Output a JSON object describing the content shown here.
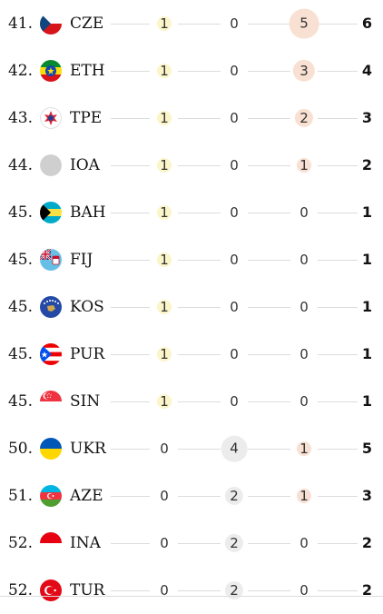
{
  "colors": {
    "gold_bubble": "#fbf5c9",
    "silver_bubble": "#ececec",
    "bronze_bubble": "#f8e0d2",
    "line": "#dcdcdc"
  },
  "rows": [
    {
      "rank": "41.",
      "code": "CZE",
      "flag": "cze",
      "gold": "1",
      "silver": "0",
      "bronze": "5",
      "total": "6"
    },
    {
      "rank": "42.",
      "code": "ETH",
      "flag": "eth",
      "gold": "1",
      "silver": "0",
      "bronze": "3",
      "total": "4"
    },
    {
      "rank": "43.",
      "code": "TPE",
      "flag": "tpe",
      "gold": "1",
      "silver": "0",
      "bronze": "2",
      "total": "3"
    },
    {
      "rank": "44.",
      "code": "IOA",
      "flag": "ioa",
      "gold": "1",
      "silver": "0",
      "bronze": "1",
      "total": "2"
    },
    {
      "rank": "45.",
      "code": "BAH",
      "flag": "bah",
      "gold": "1",
      "silver": "0",
      "bronze": "0",
      "total": "1"
    },
    {
      "rank": "45.",
      "code": "FIJ",
      "flag": "fij",
      "gold": "1",
      "silver": "0",
      "bronze": "0",
      "total": "1"
    },
    {
      "rank": "45.",
      "code": "KOS",
      "flag": "kos",
      "gold": "1",
      "silver": "0",
      "bronze": "0",
      "total": "1"
    },
    {
      "rank": "45.",
      "code": "PUR",
      "flag": "pur",
      "gold": "1",
      "silver": "0",
      "bronze": "0",
      "total": "1"
    },
    {
      "rank": "45.",
      "code": "SIN",
      "flag": "sin",
      "gold": "1",
      "silver": "0",
      "bronze": "0",
      "total": "1"
    },
    {
      "rank": "50.",
      "code": "UKR",
      "flag": "ukr",
      "gold": "0",
      "silver": "4",
      "bronze": "1",
      "total": "5"
    },
    {
      "rank": "51.",
      "code": "AZE",
      "flag": "aze",
      "gold": "0",
      "silver": "2",
      "bronze": "1",
      "total": "3"
    },
    {
      "rank": "52.",
      "code": "INA",
      "flag": "ina",
      "gold": "0",
      "silver": "2",
      "bronze": "0",
      "total": "2"
    },
    {
      "rank": "52.",
      "code": "TUR",
      "flag": "tur",
      "gold": "0",
      "silver": "2",
      "bronze": "0",
      "total": "2"
    }
  ]
}
